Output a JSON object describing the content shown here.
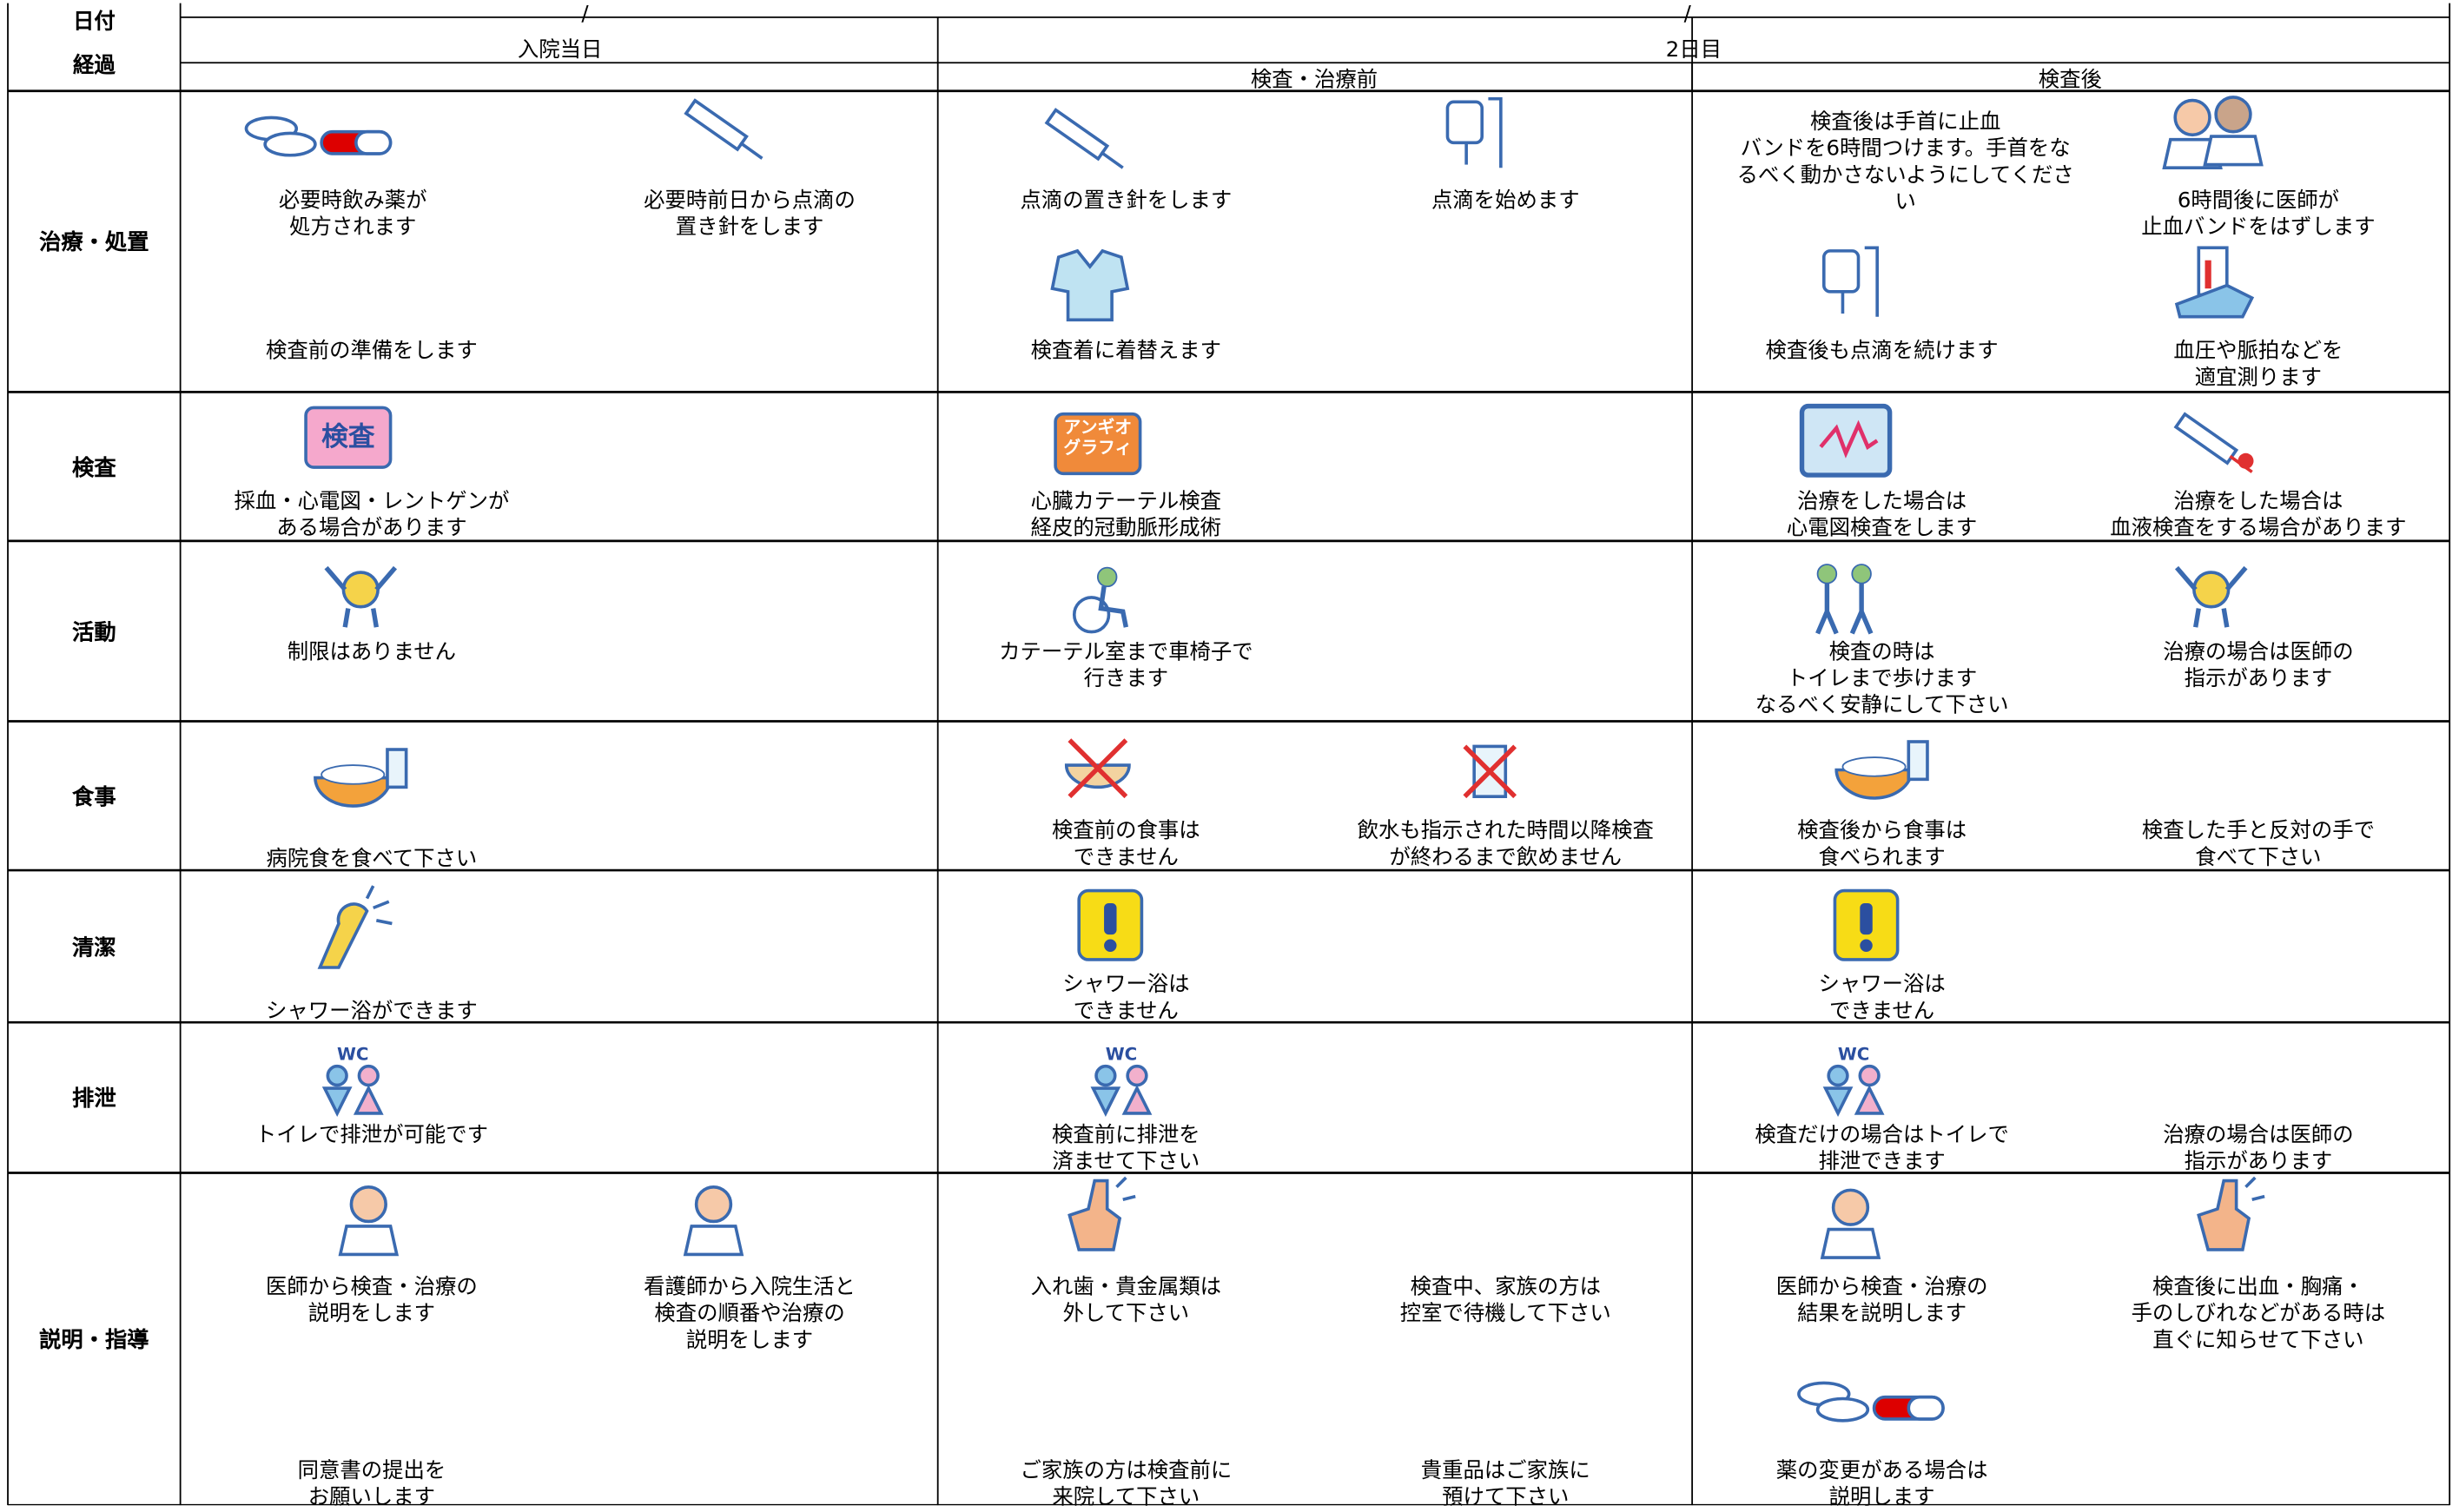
{
  "header": {
    "date_label": "日付",
    "progress_label": "経過",
    "date_marks": [
      "/",
      "/"
    ],
    "days": [
      "入院当日",
      "2日目"
    ],
    "phases": [
      "検査・治療前",
      "検査後"
    ]
  },
  "rows": [
    {
      "label": "治療・処置",
      "items": [
        {
          "text": "必要時飲み薬が\n処方されます"
        },
        {
          "text": "必要時前日から点滴の\n置き針をします"
        },
        {
          "text": "検査前の準備をします"
        },
        {
          "text": "点滴の置き針をします"
        },
        {
          "text": "点滴を始めます"
        },
        {
          "text": "検査着に着替えます"
        },
        {
          "text": "検査後は手首に止血\nバンドを6時間つけます。手首をな\nるべく動かさないようにしてくださ\nい"
        },
        {
          "text": "6時間後に医師が\n止血バンドをはずします"
        },
        {
          "text": "検査後も点滴を続けます"
        },
        {
          "text": "血圧や脈拍などを\n適宜測ります"
        }
      ]
    },
    {
      "label": "検査",
      "items": [
        {
          "text": "採血・心電図・レントゲンが\nある場合があります",
          "icon_text": "検査"
        },
        {
          "text": "心臓カテーテル検査\n経皮的冠動脈形成術",
          "icon_text": "アンギオ\nグラフィ"
        },
        {
          "text": "治療をした場合は\n心電図検査をします"
        },
        {
          "text": "治療をした場合は\n血液検査をする場合があります"
        }
      ]
    },
    {
      "label": "活動",
      "items": [
        {
          "text": "制限はありません"
        },
        {
          "text": "カテーテル室まで車椅子で\n行きます"
        },
        {
          "text": "検査の時は\nトイレまで歩けます\nなるべく安静にして下さい"
        },
        {
          "text": "治療の場合は医師の\n指示があります"
        }
      ]
    },
    {
      "label": "食事",
      "items": [
        {
          "text": "病院食を食べて下さい"
        },
        {
          "text": "検査前の食事は\nできません"
        },
        {
          "text": "飲水も指示された時間以降検査\nが終わるまで飲めません"
        },
        {
          "text": "検査後から食事は\n食べられます"
        },
        {
          "text": "検査した手と反対の手で\n食べて下さい"
        }
      ]
    },
    {
      "label": "清潔",
      "items": [
        {
          "text": "シャワー浴ができます"
        },
        {
          "text": "シャワー浴は\nできません"
        },
        {
          "text": "シャワー浴は\nできません"
        }
      ]
    },
    {
      "label": "排泄",
      "items": [
        {
          "text": "トイレで排泄が可能です",
          "icon_text": "WC"
        },
        {
          "text": "検査前に排泄を\n済ませて下さい",
          "icon_text": "WC"
        },
        {
          "text": "検査だけの場合はトイレで\n排泄できます",
          "icon_text": "WC"
        },
        {
          "text": "治療の場合は医師の\n指示があります"
        }
      ]
    },
    {
      "label": "説明・指導",
      "items": [
        {
          "text": "医師から検査・治療の\n説明をします"
        },
        {
          "text": "看護師から入院生活と\n検査の順番や治療の\n説明をします"
        },
        {
          "text": "入れ歯・貴金属類は\n外して下さい"
        },
        {
          "text": "検査中、家族の方は\n控室で待機して下さい"
        },
        {
          "text": "医師から検査・治療の\n結果を説明します"
        },
        {
          "text": "検査後に出血・胸痛・\n手のしびれなどがある時は\n直ぐに知らせて下さい"
        },
        {
          "text": "同意書の提出を\nお願いします"
        },
        {
          "text": "ご家族の方は検査前に\n来院して下さい"
        },
        {
          "text": "貴重品はご家族に\n預けて下さい"
        },
        {
          "text": "薬の変更がある場合は\n説明します"
        }
      ]
    }
  ]
}
